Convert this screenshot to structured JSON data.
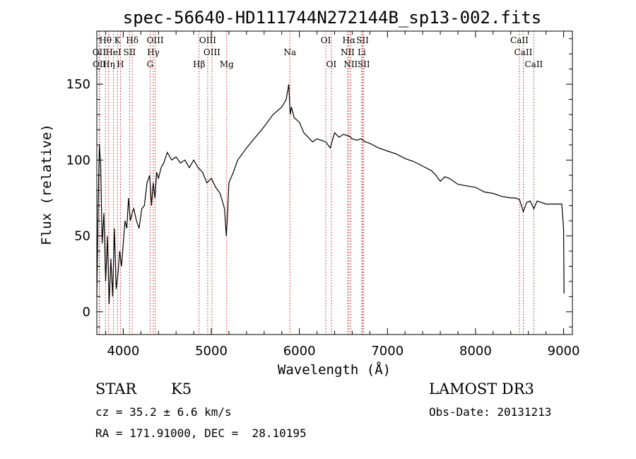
{
  "chart_data": {
    "type": "line",
    "title": "spec-56640-HD111744N272144B_sp13-002.fits",
    "xlabel": "Wavelength (Å)",
    "ylabel": "Flux (relative)",
    "xlim": [
      3700,
      9100
    ],
    "ylim": [
      -15,
      185
    ],
    "xticks": [
      4000,
      5000,
      6000,
      7000,
      8000,
      9000
    ],
    "yticks": [
      0,
      50,
      100,
      150
    ],
    "series": [
      {
        "name": "flux",
        "x": [
          3700,
          3715,
          3730,
          3745,
          3760,
          3780,
          3800,
          3820,
          3840,
          3860,
          3880,
          3900,
          3920,
          3940,
          3960,
          3980,
          4000,
          4020,
          4040,
          4060,
          4080,
          4100,
          4120,
          4150,
          4180,
          4210,
          4240,
          4270,
          4300,
          4320,
          4340,
          4360,
          4380,
          4400,
          4430,
          4460,
          4500,
          4550,
          4600,
          4650,
          4700,
          4750,
          4800,
          4850,
          4900,
          4950,
          5000,
          5050,
          5100,
          5150,
          5170,
          5185,
          5200,
          5250,
          5300,
          5400,
          5500,
          5600,
          5700,
          5800,
          5850,
          5880,
          5895,
          5910,
          5940,
          6000,
          6050,
          6100,
          6150,
          6200,
          6250,
          6300,
          6350,
          6400,
          6450,
          6500,
          6550,
          6563,
          6600,
          6650,
          6700,
          6750,
          6800,
          6900,
          7000,
          7100,
          7200,
          7300,
          7400,
          7500,
          7550,
          7600,
          7650,
          7700,
          7800,
          7900,
          8000,
          8100,
          8200,
          8300,
          8400,
          8450,
          8500,
          8542,
          8580,
          8620,
          8662,
          8700,
          8800,
          8900,
          8980,
          9000,
          9005
        ],
        "y": [
          10,
          70,
          110,
          95,
          45,
          65,
          20,
          50,
          5,
          35,
          10,
          55,
          15,
          25,
          40,
          30,
          45,
          60,
          55,
          75,
          60,
          65,
          68,
          60,
          55,
          68,
          70,
          85,
          90,
          70,
          85,
          75,
          92,
          88,
          95,
          98,
          105,
          100,
          102,
          98,
          100,
          95,
          100,
          95,
          92,
          85,
          88,
          82,
          78,
          68,
          50,
          65,
          85,
          92,
          100,
          108,
          115,
          122,
          130,
          135,
          140,
          150,
          130,
          135,
          128,
          125,
          118,
          115,
          112,
          114,
          113,
          112,
          108,
          118,
          115,
          117,
          116,
          116,
          114,
          113,
          114,
          112,
          111,
          108,
          106,
          104,
          101,
          99,
          96,
          93,
          90,
          86,
          89,
          88,
          84,
          83,
          82,
          79,
          78,
          76,
          75,
          75,
          74,
          66,
          72,
          73,
          68,
          73,
          71,
          71,
          71,
          55,
          12
        ]
      }
    ],
    "spectral_lines": [
      {
        "label": "Hθ",
        "wavelength": 3798,
        "row": 1
      },
      {
        "label": "K",
        "wavelength": 3934,
        "row": 1
      },
      {
        "label": "Hδ",
        "wavelength": 4102,
        "row": 1
      },
      {
        "label": "OIII",
        "wavelength": 4363,
        "row": 1
      },
      {
        "label": "OIII",
        "wavelength": 4959,
        "row": 1
      },
      {
        "label": "OI",
        "wavelength": 6300,
        "row": 1
      },
      {
        "label": "Hα",
        "wavelength": 6563,
        "row": 1
      },
      {
        "label": "SII",
        "wavelength": 6717,
        "row": 1
      },
      {
        "label": "CaII",
        "wavelength": 8498,
        "row": 1
      },
      {
        "label": "OII",
        "wavelength": 3727,
        "row": 2
      },
      {
        "label": "HeI",
        "wavelength": 3889,
        "row": 2
      },
      {
        "label": "SII",
        "wavelength": 4072,
        "row": 2
      },
      {
        "label": "Hγ",
        "wavelength": 4341,
        "row": 2
      },
      {
        "label": "OIII",
        "wavelength": 5007,
        "row": 2
      },
      {
        "label": "Na",
        "wavelength": 5893,
        "row": 2
      },
      {
        "label": "NII",
        "wavelength": 6548,
        "row": 2
      },
      {
        "label": "Li",
        "wavelength": 6708,
        "row": 2
      },
      {
        "label": "CaII",
        "wavelength": 8542,
        "row": 2
      },
      {
        "label": "OII",
        "wavelength": 3730,
        "row": 3
      },
      {
        "label": "Hη",
        "wavelength": 3835,
        "row": 3
      },
      {
        "label": "H",
        "wavelength": 3968,
        "row": 3
      },
      {
        "label": "G",
        "wavelength": 4305,
        "row": 3
      },
      {
        "label": "Hβ",
        "wavelength": 4861,
        "row": 3
      },
      {
        "label": "Mg",
        "wavelength": 5175,
        "row": 3
      },
      {
        "label": "OI",
        "wavelength": 6364,
        "row": 3
      },
      {
        "label": "NII",
        "wavelength": 6583,
        "row": 3
      },
      {
        "label": "SII",
        "wavelength": 6731,
        "row": 3
      },
      {
        "label": "CaII",
        "wavelength": 8662,
        "row": 3
      }
    ],
    "line_color": "#d14040"
  },
  "info": {
    "object_class": "STAR",
    "subclass": "K5",
    "survey": "LAMOST DR3",
    "cz": "cz = 35.2 ± 6.6 km/s",
    "obs_date": "Obs-Date: 20131213",
    "coords": "RA = 171.91000, DEC =  28.10195"
  }
}
